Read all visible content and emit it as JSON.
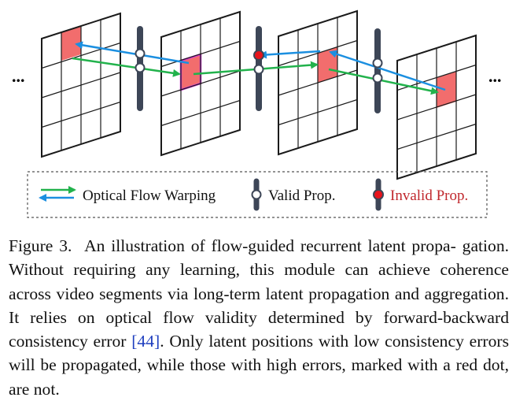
{
  "figure": {
    "ellipsis_left": "...",
    "ellipsis_right": "...",
    "colors": {
      "grid": "#1a1a1a",
      "cell_highlight": "#f26d6d",
      "cell_highlight_border": "#d63ad6",
      "bar": "#3d4657",
      "flow_forward": "#22b24c",
      "flow_backward": "#1b8fe0",
      "invalid_dot": "#e8141c",
      "valid_dot": "#ffffff"
    },
    "legend": {
      "flow_label": "Optical Flow Warping",
      "valid_label": "Valid Prop.",
      "invalid_label": "Invalid Prop.",
      "invalid_label_color": "#c0282d"
    }
  },
  "caption": {
    "label": "Figure 3.",
    "lines": [
      "An illustration of flow-guided recurrent latent propa-",
      "gation. Without requiring any learning, this module can achieve",
      "coherence across video segments via long-term latent propagation",
      "and aggregation. It relies on optical flow validity determined by",
      "forward-backward consistency error ",
      ". Only latent positions",
      "with low consistency errors will be propagated, while those with",
      "high errors, marked with a red dot, are not."
    ],
    "ref": "[44]"
  }
}
